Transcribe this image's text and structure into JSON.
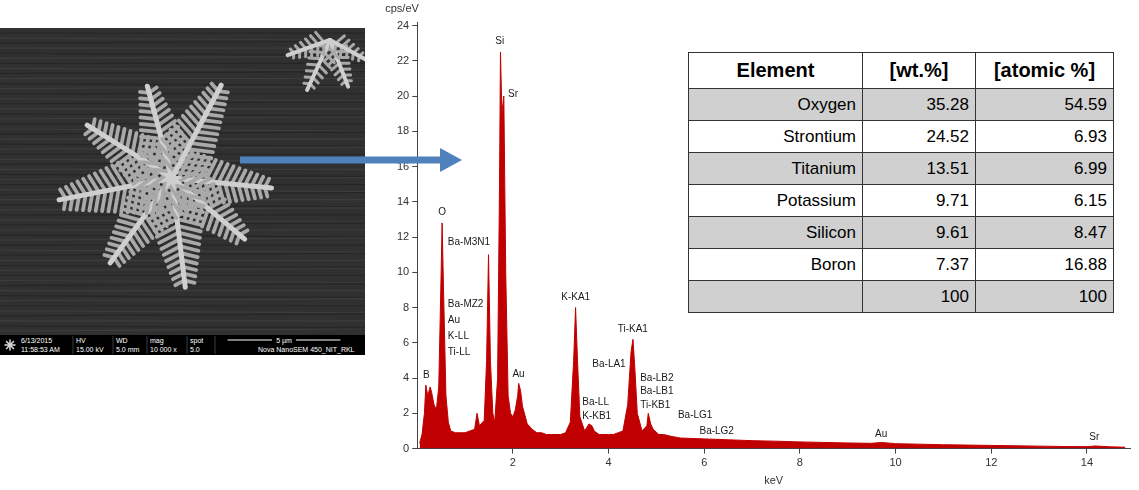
{
  "image": {
    "info_bar": {
      "date": "6/13/2015",
      "time": "11:58:53 AM",
      "columns": [
        {
          "label": "HV",
          "value": "15.00 kV"
        },
        {
          "label": "WD",
          "value": "5.0 mm"
        },
        {
          "label": "mag",
          "value": "10 000 x"
        },
        {
          "label": "spot",
          "value": "5.0"
        }
      ],
      "scale_bar": "5 μm",
      "instrument": "Nova NanoSEM 450_NIT_RKL"
    }
  },
  "chart_data": {
    "type": "area",
    "x_label": "keV",
    "y_label": "cps/eV",
    "color": "#c00000",
    "grid": false,
    "xlim": [
      0,
      14.9
    ],
    "xticks": [
      2,
      4,
      6,
      8,
      10,
      12,
      14
    ],
    "ylim": [
      0,
      24.2
    ],
    "yticks": [
      0,
      2,
      4,
      6,
      8,
      10,
      12,
      14,
      16,
      18,
      20,
      22,
      24
    ],
    "x": [
      0.05,
      0.1,
      0.15,
      0.18,
      0.22,
      0.27,
      0.3,
      0.35,
      0.4,
      0.45,
      0.5,
      0.52,
      0.55,
      0.6,
      0.65,
      0.7,
      0.8,
      0.9,
      1.0,
      1.1,
      1.2,
      1.25,
      1.3,
      1.4,
      1.45,
      1.49,
      1.53,
      1.58,
      1.62,
      1.68,
      1.72,
      1.74,
      1.77,
      1.81,
      1.85,
      1.9,
      1.95,
      2.0,
      2.05,
      2.1,
      2.12,
      2.16,
      2.2,
      2.3,
      2.4,
      2.5,
      2.6,
      2.7,
      2.8,
      2.9,
      3.0,
      3.1,
      3.2,
      3.27,
      3.31,
      3.35,
      3.4,
      3.5,
      3.59,
      3.65,
      3.7,
      3.8,
      3.9,
      4.0,
      4.1,
      4.2,
      4.3,
      4.4,
      4.47,
      4.51,
      4.55,
      4.6,
      4.7,
      4.8,
      4.83,
      4.88,
      4.93,
      4.97,
      5.05,
      5.15,
      5.3,
      5.5,
      6.0,
      6.5,
      7.0,
      7.5,
      8.0,
      8.5,
      9.0,
      9.5,
      9.7,
      10.0,
      10.5,
      11.0,
      11.5,
      12.0,
      12.5,
      13.0,
      13.5,
      14.0,
      14.17,
      14.5,
      14.8
    ],
    "values": [
      0.3,
      0.8,
      2.0,
      3.6,
      3.0,
      3.5,
      3.2,
      2.5,
      2.2,
      3.5,
      10,
      12.8,
      9,
      3,
      1.5,
      1.0,
      0.9,
      0.9,
      0.9,
      1.0,
      1.1,
      2.0,
      1.3,
      1.6,
      5,
      11,
      5,
      2,
      1.5,
      4,
      15,
      22.5,
      19,
      20,
      10,
      3,
      2,
      1.8,
      2.2,
      3.0,
      3.7,
      3.3,
      2.4,
      1.4,
      1.1,
      0.9,
      0.9,
      0.8,
      0.8,
      0.8,
      0.8,
      0.9,
      1.5,
      5,
      8,
      5,
      1.8,
      1.0,
      1.4,
      1.3,
      1.0,
      0.8,
      0.8,
      0.8,
      0.8,
      0.9,
      1.0,
      2.5,
      5.5,
      6.2,
      4.5,
      2.0,
      1.0,
      1.3,
      2.0,
      1.4,
      1.1,
      1.0,
      0.8,
      0.8,
      0.7,
      0.6,
      0.55,
      0.5,
      0.45,
      0.42,
      0.38,
      0.35,
      0.32,
      0.3,
      0.35,
      0.28,
      0.25,
      0.22,
      0.2,
      0.18,
      0.16,
      0.14,
      0.12,
      0.11,
      0.15,
      0.1,
      0.08
    ],
    "annotations": [
      {
        "text": "Si",
        "x": 1.63,
        "y": 22.8
      },
      {
        "text": "Sr",
        "x": 1.9,
        "y": 19.8
      },
      {
        "text": "O",
        "x": 0.44,
        "y": 13.1
      },
      {
        "text": "B",
        "x": 0.12,
        "y": 3.85
      },
      {
        "text": "Ba-M3N1",
        "x": 0.64,
        "y": 11.4
      },
      {
        "text": "Ba-MZ2",
        "x": 0.64,
        "y": 7.9
      },
      {
        "text": "Au",
        "x": 0.64,
        "y": 7.0
      },
      {
        "text": "K-LL",
        "x": 0.64,
        "y": 6.1
      },
      {
        "text": "Ti-LL",
        "x": 0.64,
        "y": 5.2
      },
      {
        "text": "Au",
        "x": 1.99,
        "y": 3.95
      },
      {
        "text": "K-KA1",
        "x": 3.01,
        "y": 8.3
      },
      {
        "text": "K-KB1",
        "x": 3.45,
        "y": 1.55
      },
      {
        "text": "Ba-LL",
        "x": 3.45,
        "y": 2.35
      },
      {
        "text": "Ba-LA1",
        "x": 3.66,
        "y": 4.5
      },
      {
        "text": "Ti-KA1",
        "x": 4.19,
        "y": 6.5
      },
      {
        "text": "Ti-KB1",
        "x": 4.66,
        "y": 2.2
      },
      {
        "text": "Ba-LB1",
        "x": 4.66,
        "y": 2.95
      },
      {
        "text": "Ba-LB2",
        "x": 4.66,
        "y": 3.7
      },
      {
        "text": "Ba-LG1",
        "x": 5.45,
        "y": 1.6
      },
      {
        "text": "Ba-LG2",
        "x": 5.9,
        "y": 0.7
      },
      {
        "text": "Au",
        "x": 9.57,
        "y": 0.55
      },
      {
        "text": "Sr",
        "x": 14.05,
        "y": 0.35
      }
    ]
  },
  "table": {
    "columns": [
      "Element",
      "[wt.%]",
      "[atomic %]"
    ],
    "rows": [
      [
        "Oxygen",
        35.28,
        54.59
      ],
      [
        "Strontium",
        24.52,
        6.93
      ],
      [
        "Titanium",
        13.51,
        6.99
      ],
      [
        "Potassium",
        9.71,
        6.15
      ],
      [
        "Silicon",
        9.61,
        8.47
      ],
      [
        "Boron",
        7.37,
        16.88
      ]
    ],
    "total": [
      100,
      100
    ]
  }
}
